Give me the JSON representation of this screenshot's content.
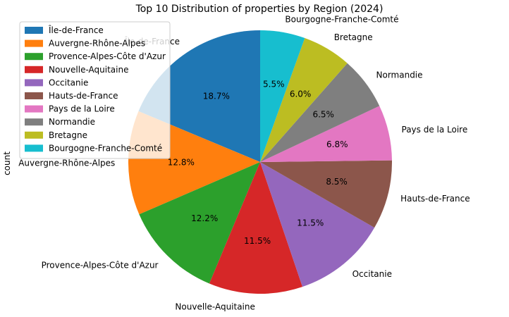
{
  "chart_data": {
    "type": "pie",
    "title": "Top 10 Distribution of properties by Region (2024)",
    "ylabel": "count",
    "legend_position": "top-left",
    "start_angle_deg": 90,
    "direction": "counterclockwise",
    "slices": [
      {
        "label": "Île-de-France",
        "percent": 18.7,
        "pct_text": "18.7%",
        "color": "#1f77b4"
      },
      {
        "label": "Auvergne-Rhône-Alpes",
        "percent": 12.8,
        "pct_text": "12.8%",
        "color": "#ff7f0e"
      },
      {
        "label": "Provence-Alpes-Côte d'Azur",
        "percent": 12.2,
        "pct_text": "12.2%",
        "color": "#2ca02c"
      },
      {
        "label": "Nouvelle-Aquitaine",
        "percent": 11.5,
        "pct_text": "11.5%",
        "color": "#d62728"
      },
      {
        "label": "Occitanie",
        "percent": 11.5,
        "pct_text": "11.5%",
        "color": "#9467bd"
      },
      {
        "label": "Hauts-de-France",
        "percent": 8.5,
        "pct_text": "8.5%",
        "color": "#8c564b"
      },
      {
        "label": "Pays de la Loire",
        "percent": 6.8,
        "pct_text": "6.8%",
        "color": "#e377c2"
      },
      {
        "label": "Normandie",
        "percent": 6.5,
        "pct_text": "6.5%",
        "color": "#7f7f7f"
      },
      {
        "label": "Bretagne",
        "percent": 6.0,
        "pct_text": "6.0%",
        "color": "#bcbd22"
      },
      {
        "label": "Bourgogne-Franche-Comté",
        "percent": 5.5,
        "pct_text": "5.5%",
        "color": "#17becf"
      }
    ]
  }
}
